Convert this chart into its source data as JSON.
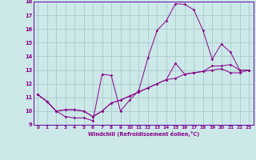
{
  "xlabel": "Windchill (Refroidissement éolien,°C)",
  "bg_color": "#cce8e8",
  "line_color": "#880088",
  "grid_color": "#aacccc",
  "spine_color": "#6600aa",
  "xlim": [
    -0.5,
    23.5
  ],
  "ylim": [
    9,
    18
  ],
  "xticks": [
    0,
    1,
    2,
    3,
    4,
    5,
    6,
    7,
    8,
    9,
    10,
    11,
    12,
    13,
    14,
    15,
    16,
    17,
    18,
    19,
    20,
    21,
    22,
    23
  ],
  "yticks": [
    9,
    10,
    11,
    12,
    13,
    14,
    15,
    16,
    17,
    18
  ],
  "series": [
    [
      11.2,
      10.7,
      10.0,
      9.6,
      9.5,
      9.5,
      9.3,
      12.7,
      12.6,
      10.0,
      10.8,
      11.5,
      13.9,
      15.9,
      16.6,
      17.85,
      17.8,
      17.4,
      15.9,
      13.8,
      14.9,
      14.3,
      13.0,
      13.0
    ],
    [
      11.2,
      10.7,
      10.0,
      10.1,
      10.1,
      10.0,
      9.6,
      10.0,
      10.6,
      10.8,
      11.1,
      11.4,
      11.7,
      12.0,
      12.3,
      13.5,
      12.7,
      12.8,
      12.9,
      13.3,
      13.3,
      13.4,
      13.0,
      13.0
    ],
    [
      11.2,
      10.7,
      10.0,
      10.1,
      10.1,
      10.0,
      9.6,
      10.0,
      10.6,
      10.8,
      11.1,
      11.4,
      11.7,
      12.0,
      12.3,
      12.4,
      12.7,
      12.8,
      12.9,
      13.0,
      13.1,
      12.8,
      12.8,
      13.0
    ]
  ]
}
